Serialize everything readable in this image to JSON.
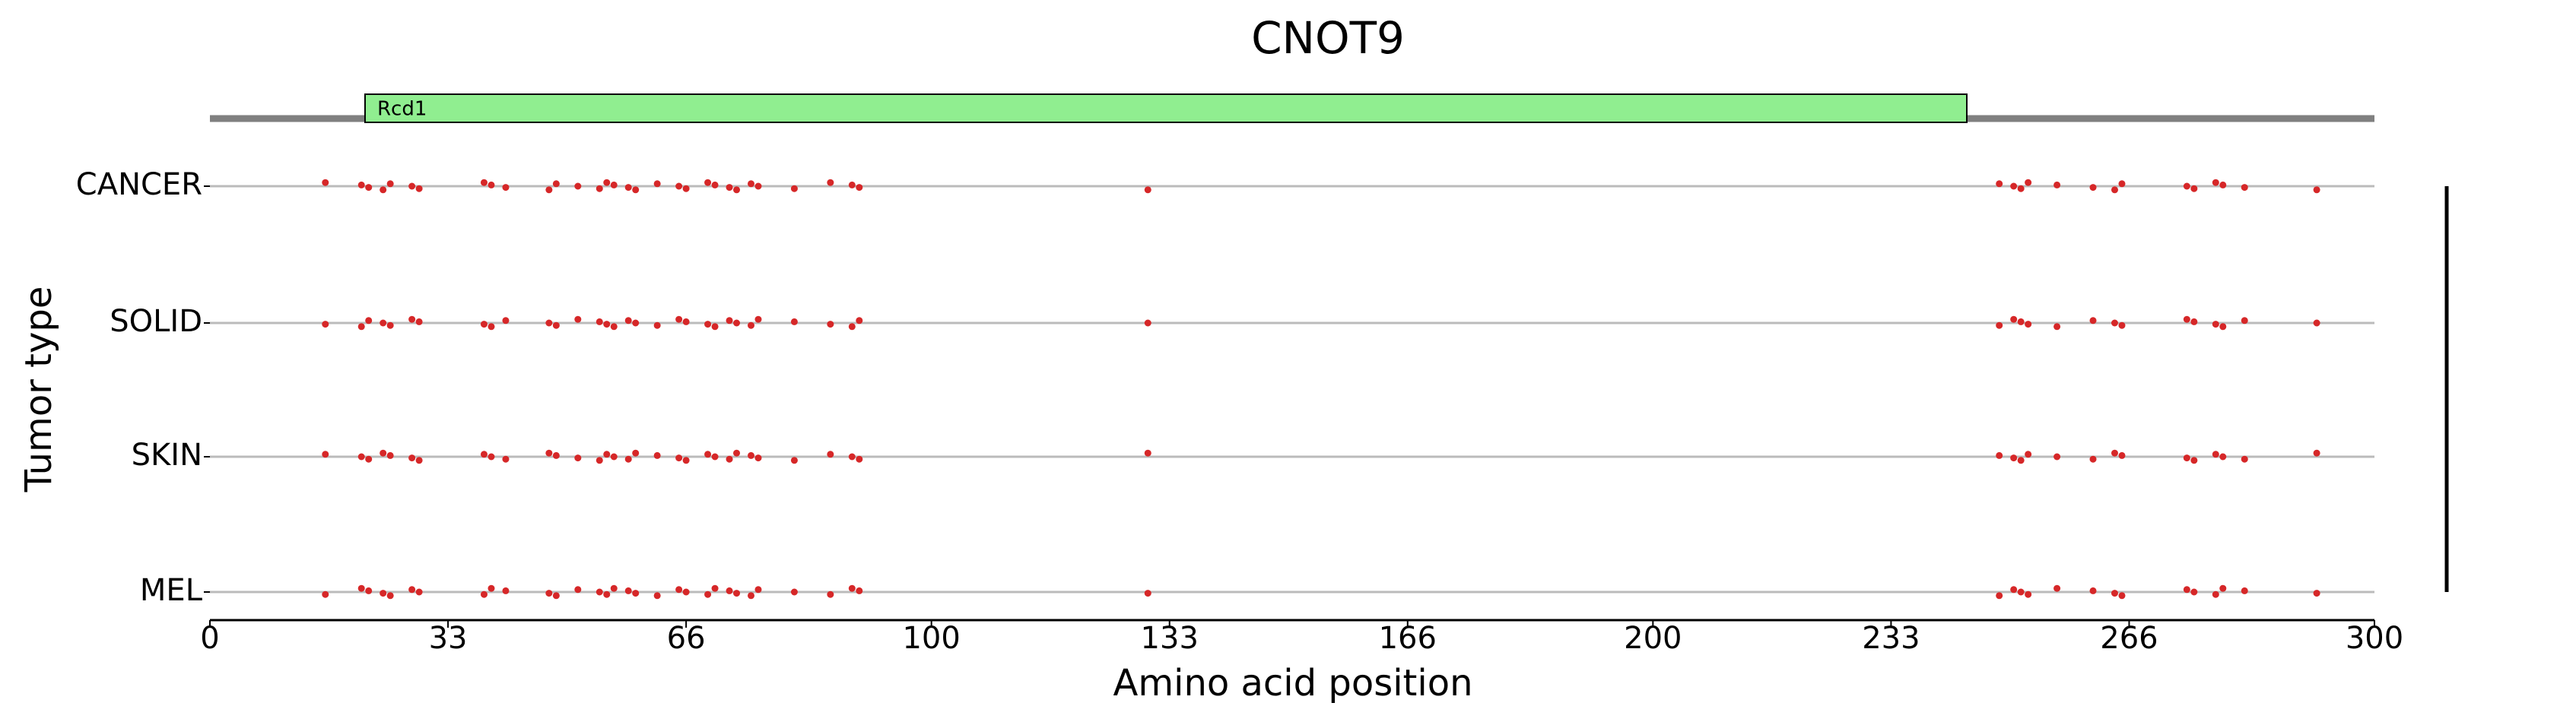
{
  "chart_data": {
    "type": "strip",
    "title": "CNOT9",
    "x_label": "Amino acid position",
    "y_label": "Tumor type",
    "xlim": [
      0,
      300
    ],
    "xticks": [
      0,
      33,
      66,
      100,
      133,
      166,
      200,
      233,
      266,
      300
    ],
    "domains": [
      {
        "name": "Rcd1",
        "start": 21.5,
        "end": 243.5,
        "color": "#90ee90"
      }
    ],
    "series": [
      {
        "name": "CANCER",
        "color": "#d62728",
        "values": [
          16,
          21,
          22,
          24,
          25,
          28,
          29,
          38,
          39,
          41,
          47,
          48,
          51,
          54,
          55,
          56,
          58,
          59,
          62,
          65,
          66,
          69,
          70,
          72,
          73,
          75,
          76,
          81,
          86,
          89,
          90,
          130,
          248,
          250,
          251,
          252,
          256,
          261,
          264,
          265,
          274,
          275,
          278,
          279,
          282,
          292
        ]
      },
      {
        "name": "SOLID",
        "color": "#d62728",
        "values": [
          16,
          21,
          22,
          24,
          25,
          28,
          29,
          38,
          39,
          41,
          47,
          48,
          51,
          54,
          55,
          56,
          58,
          59,
          62,
          65,
          66,
          69,
          70,
          72,
          73,
          75,
          76,
          81,
          86,
          89,
          90,
          130,
          248,
          250,
          251,
          252,
          256,
          261,
          264,
          265,
          274,
          275,
          278,
          279,
          282,
          292
        ]
      },
      {
        "name": "SKIN",
        "color": "#d62728",
        "values": [
          16,
          21,
          22,
          24,
          25,
          28,
          29,
          38,
          39,
          41,
          47,
          48,
          51,
          54,
          55,
          56,
          58,
          59,
          62,
          65,
          66,
          69,
          70,
          72,
          73,
          75,
          76,
          81,
          86,
          89,
          90,
          130,
          248,
          250,
          251,
          252,
          256,
          261,
          264,
          265,
          274,
          275,
          278,
          279,
          282,
          292
        ]
      },
      {
        "name": "MEL",
        "color": "#d62728",
        "values": [
          16,
          21,
          22,
          24,
          25,
          28,
          29,
          38,
          39,
          41,
          47,
          48,
          51,
          54,
          55,
          56,
          58,
          59,
          62,
          65,
          66,
          69,
          70,
          72,
          73,
          75,
          76,
          81,
          86,
          89,
          90,
          130,
          248,
          250,
          251,
          252,
          256,
          261,
          264,
          265,
          274,
          275,
          278,
          279,
          282,
          292
        ]
      }
    ]
  }
}
